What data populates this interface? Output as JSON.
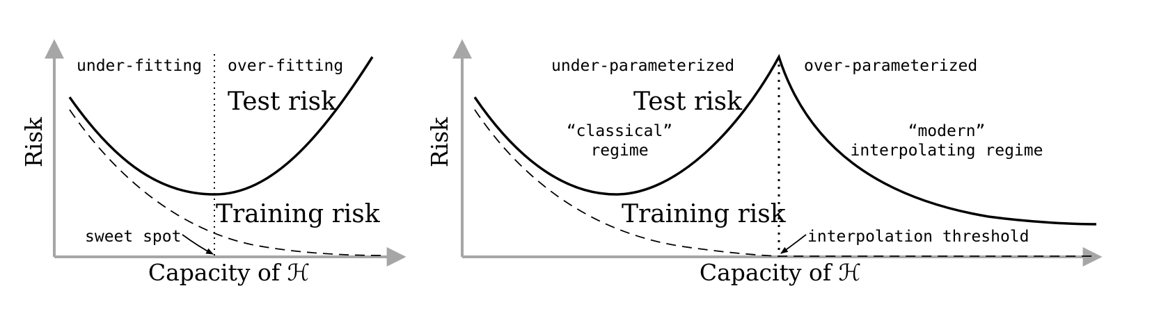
{
  "colors": {
    "axis": "#a6a6a6",
    "curve": "#000000",
    "background": "#ffffff"
  },
  "left_panel": {
    "y_axis_label": "Risk",
    "x_axis_label": "Capacity of ℋ",
    "region_left": "under-fitting",
    "region_right": "over-fitting",
    "test_risk_label": "Test risk",
    "training_risk_label": "Training risk",
    "annotation": "sweet spot"
  },
  "right_panel": {
    "y_axis_label": "Risk",
    "x_axis_label": "Capacity of ℋ",
    "region_left": "under-parameterized",
    "region_right": "over-parameterized",
    "test_risk_label": "Test risk",
    "training_risk_label": "Training risk",
    "classical_line1": "“classical”",
    "classical_line2": "regime",
    "modern_line1": "“modern”",
    "modern_line2": "interpolating regime",
    "annotation": "interpolation threshold"
  }
}
